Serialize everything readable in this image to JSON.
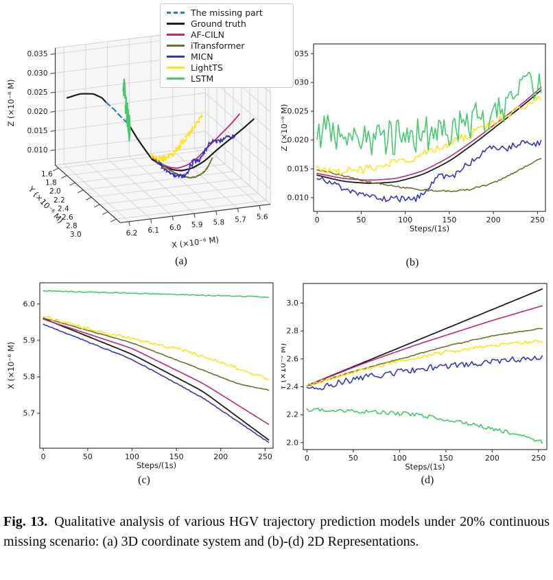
{
  "figure": {
    "caption_label": "Fig. 13.",
    "caption_text": "Qualitative analysis of various HGV trajectory prediction models under 20% continuous missing scenario: (a) 3D coordinate system and (b)-(d) 2D Representations.",
    "panel_labels": {
      "a": "(a)",
      "b": "(b)",
      "c": "(c)",
      "d": "(d)"
    }
  },
  "legend": {
    "entries": [
      {
        "label": "The missing part",
        "color": "#2380cc",
        "dash": true
      },
      {
        "label": "Ground truth",
        "color": "#1c1c1c",
        "dash": false
      },
      {
        "label": "AF-CILN",
        "color": "#c02478",
        "dash": false
      },
      {
        "label": "iTransformer",
        "color": "#6f6f2b",
        "dash": false
      },
      {
        "label": "MICN",
        "color": "#3434bc",
        "dash": false
      },
      {
        "label": "LightTS",
        "color": "#ffe318",
        "dash": false
      },
      {
        "label": "LSTM",
        "color": "#42c96b",
        "dash": false
      }
    ]
  },
  "chart_data": [
    {
      "id": "a",
      "type": "line3d",
      "xlabel": "X (×10⁻⁶ M)",
      "ylabel": "Y (×10⁻⁶ M)",
      "zlabel": "Z (×10⁻⁶ M)",
      "xticks": [
        "6.2",
        "6.1",
        "6.0",
        "5.9",
        "5.8",
        "5.7",
        "5.6"
      ],
      "yticks": [
        "1.6",
        "1.8",
        "2.0",
        "2.2",
        "2.4",
        "2.6",
        "2.8",
        "3.0"
      ],
      "zticks": [
        "0.010",
        "0.015",
        "0.020",
        "0.025",
        "0.030",
        "0.035"
      ],
      "xlim": [
        6.2,
        5.6
      ],
      "ylim": [
        1.6,
        3.0
      ],
      "zlim": [
        0.006,
        0.0365
      ],
      "grid": true,
      "history_solid_pre": [
        [
          6.2,
          1.6,
          0.024
        ],
        [
          6.15,
          1.65,
          0.0252
        ],
        [
          6.1,
          1.71,
          0.0254
        ],
        [
          6.07,
          1.76,
          0.0246
        ],
        [
          6.055,
          1.78,
          0.0235
        ]
      ],
      "missing_part": [
        [
          6.055,
          1.78,
          0.0235
        ],
        [
          6.03,
          1.83,
          0.0221
        ],
        [
          6.01,
          1.89,
          0.0206
        ],
        [
          5.985,
          1.96,
          0.019
        ]
      ],
      "history_solid_post": [
        [
          5.985,
          1.96,
          0.019
        ],
        [
          5.975,
          2.1,
          0.0168
        ],
        [
          5.965,
          2.25,
          0.015
        ],
        [
          5.96,
          2.4,
          0.0138
        ]
      ],
      "model_axes": {
        "x_from": "c",
        "y_from": "d",
        "z_from": "b"
      }
    },
    {
      "id": "b",
      "type": "line",
      "xlabel": "Steps/(1s)",
      "ylabel": "Z (×10⁻⁶ M)",
      "xlim": [
        -4,
        259
      ],
      "ylim": [
        0.0076,
        0.0367
      ],
      "xticks": [
        0,
        50,
        100,
        150,
        200,
        250
      ],
      "yticks": [
        "0.010",
        "0.015",
        "0.020",
        "0.025",
        "0.030",
        "0.035"
      ],
      "series": [
        {
          "name": "Ground truth",
          "seed": 1,
          "noise": 0,
          "points": [
            [
              0,
              0.0139
            ],
            [
              30,
              0.0128
            ],
            [
              60,
              0.01245
            ],
            [
              90,
              0.0127
            ],
            [
              120,
              0.014
            ],
            [
              150,
              0.0163
            ],
            [
              180,
              0.0196
            ],
            [
              210,
              0.0232
            ],
            [
              235,
              0.0262
            ],
            [
              255,
              0.0288
            ]
          ]
        },
        {
          "name": "AF-CILN",
          "seed": 2,
          "noise": 0,
          "points": [
            [
              0,
              0.0142
            ],
            [
              30,
              0.0133
            ],
            [
              60,
              0.013
            ],
            [
              90,
              0.0133
            ],
            [
              120,
              0.0146
            ],
            [
              150,
              0.017
            ],
            [
              180,
              0.0202
            ],
            [
              210,
              0.0237
            ],
            [
              235,
              0.0266
            ],
            [
              255,
              0.0293
            ]
          ]
        },
        {
          "name": "iTransformer",
          "seed": 3,
          "noise": 0.00015,
          "points": [
            [
              0,
              0.0149
            ],
            [
              30,
              0.0138
            ],
            [
              60,
              0.0127
            ],
            [
              90,
              0.0119
            ],
            [
              120,
              0.0113
            ],
            [
              150,
              0.0111
            ],
            [
              170,
              0.0113
            ],
            [
              200,
              0.0125
            ],
            [
              230,
              0.0148
            ],
            [
              255,
              0.017
            ]
          ]
        },
        {
          "name": "MICN",
          "seed": 4,
          "noise": 0.00055,
          "points": [
            [
              0,
              0.0133
            ],
            [
              30,
              0.0117
            ],
            [
              60,
              0.0103
            ],
            [
              80,
              0.0097
            ],
            [
              100,
              0.0099
            ],
            [
              110,
              0.0094
            ],
            [
              120,
              0.0105
            ],
            [
              130,
              0.0118
            ],
            [
              135,
              0.0146
            ],
            [
              142,
              0.0139
            ],
            [
              152,
              0.0127
            ],
            [
              162,
              0.015
            ],
            [
              172,
              0.0158
            ],
            [
              182,
              0.0172
            ],
            [
              192,
              0.0184
            ],
            [
              203,
              0.0192
            ],
            [
              213,
              0.0178
            ],
            [
              222,
              0.0192
            ],
            [
              233,
              0.0196
            ],
            [
              244,
              0.019
            ],
            [
              255,
              0.0198
            ]
          ]
        },
        {
          "name": "LightTS",
          "seed": 5,
          "noise": 0.0007,
          "points": [
            [
              0,
              0.015
            ],
            [
              25,
              0.0145
            ],
            [
              50,
              0.0148
            ],
            [
              80,
              0.0158
            ],
            [
              110,
              0.017
            ],
            [
              140,
              0.0187
            ],
            [
              170,
              0.0207
            ],
            [
              200,
              0.023
            ],
            [
              230,
              0.0254
            ],
            [
              255,
              0.0272
            ]
          ]
        },
        {
          "name": "LSTM",
          "seed": 6,
          "noise": 0.0031,
          "points": [
            [
              0,
              0.0218
            ],
            [
              40,
              0.0206
            ],
            [
              80,
              0.0203
            ],
            [
              120,
              0.0209
            ],
            [
              150,
              0.0219
            ],
            [
              180,
              0.0236
            ],
            [
              210,
              0.0259
            ],
            [
              235,
              0.0285
            ],
            [
              255,
              0.0313
            ]
          ]
        }
      ]
    },
    {
      "id": "c",
      "type": "line",
      "xlabel": "Steps/(1s)",
      "ylabel": "X (×10⁻⁶ M)",
      "xlim": [
        -4,
        259
      ],
      "ylim": [
        5.604,
        6.058
      ],
      "xticks": [
        0,
        50,
        100,
        150,
        200,
        250
      ],
      "yticks": [
        "5.7",
        "5.8",
        "5.9",
        "6.0"
      ],
      "series": [
        {
          "name": "Ground truth",
          "seed": 7,
          "noise": 0,
          "points": [
            [
              0,
              5.96
            ],
            [
              100,
              5.862
            ],
            [
              180,
              5.76
            ],
            [
              255,
              5.625
            ]
          ]
        },
        {
          "name": "AF-CILN",
          "seed": 8,
          "noise": 0,
          "points": [
            [
              0,
              5.958
            ],
            [
              100,
              5.878
            ],
            [
              180,
              5.782
            ],
            [
              255,
              5.668
            ]
          ]
        },
        {
          "name": "iTransformer",
          "seed": 9,
          "noise": 0.0008,
          "points": [
            [
              0,
              5.962
            ],
            [
              100,
              5.893
            ],
            [
              170,
              5.828
            ],
            [
              220,
              5.78
            ],
            [
              255,
              5.763
            ]
          ]
        },
        {
          "name": "MICN",
          "seed": 10,
          "noise": 0.0012,
          "points": [
            [
              0,
              5.944
            ],
            [
              100,
              5.848
            ],
            [
              180,
              5.742
            ],
            [
              255,
              5.618
            ]
          ]
        },
        {
          "name": "LightTS",
          "seed": 11,
          "noise": 0.0042,
          "points": [
            [
              0,
              5.968
            ],
            [
              40,
              5.938
            ],
            [
              100,
              5.904
            ],
            [
              160,
              5.872
            ],
            [
              210,
              5.832
            ],
            [
              255,
              5.792
            ]
          ]
        },
        {
          "name": "LSTM",
          "seed": 12,
          "noise": 0.0013,
          "points": [
            [
              0,
              6.036
            ],
            [
              120,
              6.028
            ],
            [
              255,
              6.019
            ]
          ]
        }
      ]
    },
    {
      "id": "d",
      "type": "line",
      "xlabel": "Steps/(1s)",
      "ylabel": "Y (×10⁻⁶ M)",
      "xlim": [
        -4,
        259
      ],
      "ylim": [
        1.95,
        3.14
      ],
      "xticks": [
        0,
        50,
        100,
        150,
        200,
        250
      ],
      "yticks": [
        "2.0",
        "2.2",
        "2.4",
        "2.6",
        "2.8",
        "3.0"
      ],
      "series": [
        {
          "name": "Ground truth",
          "seed": 13,
          "noise": 0,
          "points": [
            [
              0,
              2.408
            ],
            [
              255,
              3.103
            ]
          ]
        },
        {
          "name": "AF-CILN",
          "seed": 14,
          "noise": 0,
          "points": [
            [
              0,
              2.408
            ],
            [
              60,
              2.565
            ],
            [
              120,
              2.705
            ],
            [
              160,
              2.79
            ],
            [
              200,
              2.875
            ],
            [
              255,
              2.982
            ]
          ]
        },
        {
          "name": "iTransformer",
          "seed": 15,
          "noise": 0.003,
          "points": [
            [
              0,
              2.405
            ],
            [
              50,
              2.51
            ],
            [
              100,
              2.598
            ],
            [
              150,
              2.69
            ],
            [
              200,
              2.765
            ],
            [
              255,
              2.82
            ]
          ]
        },
        {
          "name": "MICN",
          "seed": 16,
          "noise": 0.022,
          "points": [
            [
              0,
              2.375
            ],
            [
              50,
              2.455
            ],
            [
              100,
              2.505
            ],
            [
              150,
              2.552
            ],
            [
              200,
              2.58
            ],
            [
              255,
              2.612
            ]
          ]
        },
        {
          "name": "LightTS",
          "seed": 17,
          "noise": 0.011,
          "points": [
            [
              0,
              2.412
            ],
            [
              50,
              2.505
            ],
            [
              100,
              2.582
            ],
            [
              150,
              2.65
            ],
            [
              200,
              2.692
            ],
            [
              255,
              2.73
            ]
          ]
        },
        {
          "name": "LSTM",
          "seed": 18,
          "noise": 0.014,
          "points": [
            [
              0,
              2.238
            ],
            [
              60,
              2.225
            ],
            [
              110,
              2.205
            ],
            [
              150,
              2.17
            ],
            [
              190,
              2.115
            ],
            [
              225,
              2.06
            ],
            [
              255,
              2.005
            ]
          ]
        }
      ]
    }
  ]
}
